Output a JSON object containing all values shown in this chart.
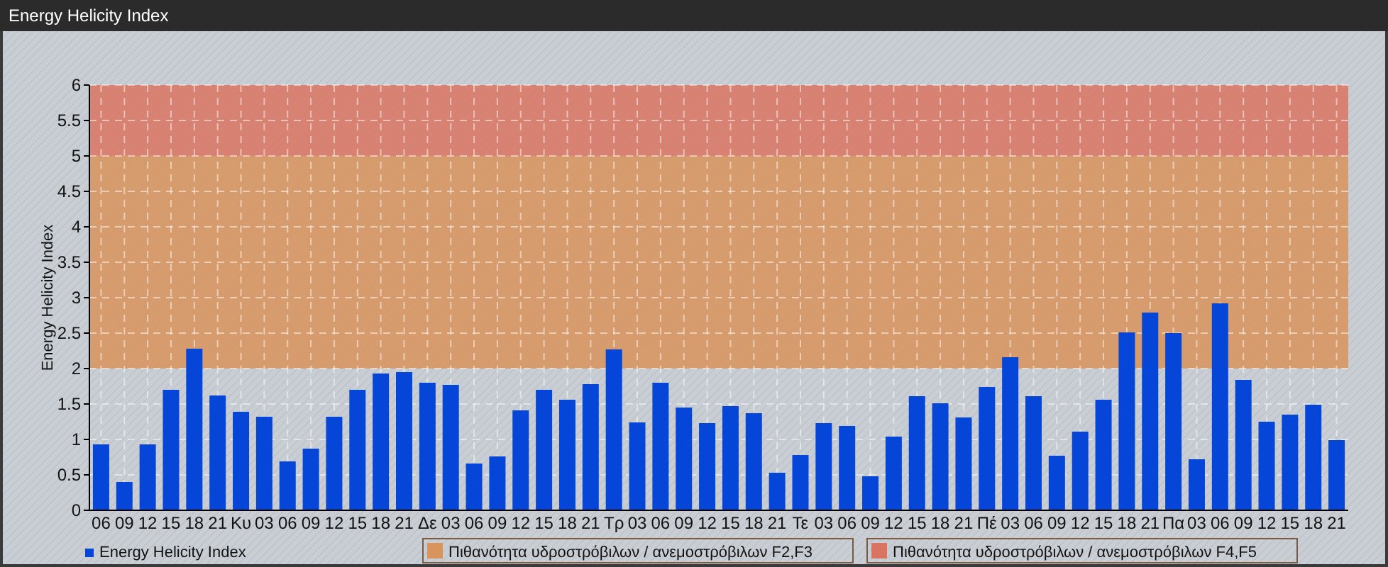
{
  "chart_data": {
    "type": "bar",
    "title": "Energy Helicity Index",
    "ylabel": "Energy Helicity Index",
    "categories": [
      "06",
      "09",
      "12",
      "15",
      "18",
      "21",
      "Κυ",
      "03",
      "06",
      "09",
      "12",
      "15",
      "18",
      "21",
      "Δε",
      "03",
      "06",
      "09",
      "12",
      "15",
      "18",
      "21",
      "Τρ",
      "03",
      "06",
      "09",
      "12",
      "15",
      "18",
      "21",
      "Τε",
      "03",
      "06",
      "09",
      "12",
      "15",
      "18",
      "21",
      "Πέ",
      "03",
      "06",
      "09",
      "12",
      "15",
      "18",
      "21",
      "Πα",
      "03",
      "06",
      "09",
      "12",
      "15",
      "18",
      "21"
    ],
    "series": [
      {
        "name": "Energy Helicity Index",
        "color": "#0546d8",
        "values": [
          0.93,
          0.4,
          0.93,
          1.7,
          2.28,
          1.62,
          1.39,
          1.32,
          0.69,
          0.87,
          1.32,
          1.7,
          1.93,
          1.95,
          1.8,
          1.77,
          0.66,
          0.76,
          1.41,
          1.7,
          1.56,
          1.78,
          2.27,
          1.24,
          1.8,
          1.45,
          1.23,
          1.47,
          1.37,
          0.53,
          0.78,
          1.23,
          1.19,
          0.48,
          1.04,
          1.61,
          1.51,
          1.31,
          1.74,
          2.16,
          1.61,
          0.77,
          1.11,
          1.56,
          2.51,
          2.79,
          2.5,
          0.72,
          2.92,
          1.84,
          1.25,
          1.35,
          1.49,
          0.99
        ]
      }
    ],
    "ylim": [
      0,
      6
    ],
    "yticks": [
      0,
      0.5,
      1,
      1.5,
      2,
      2.5,
      3,
      3.5,
      4,
      4.5,
      5,
      5.5,
      6
    ],
    "bands": [
      {
        "axis": "y",
        "from": 2,
        "to": 5,
        "label": "Πιθανότητα υδροστρόβιλων / ανεμοστρόβιλων F2,F3",
        "color": "#d9935c"
      },
      {
        "axis": "y",
        "from": 5,
        "to": 6,
        "label": "Πιθανότητα υδροστρόβιλων / ανεμοστρόβιλων F4,F5",
        "color": "#da7462"
      }
    ],
    "grid": true,
    "legend": "bottom left"
  }
}
